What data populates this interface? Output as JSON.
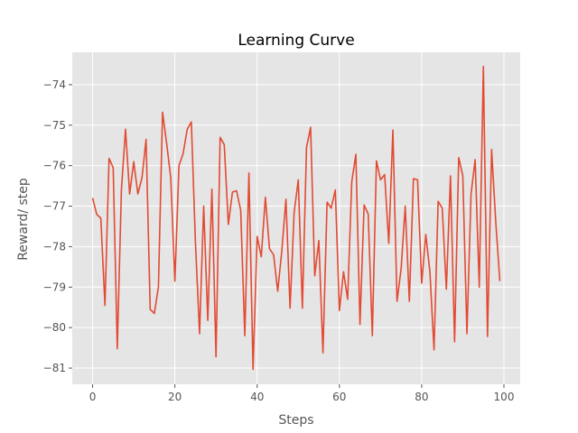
{
  "chart_data": {
    "type": "line",
    "title": "Learning Curve",
    "xlabel": "Steps",
    "ylabel": "Reward/ step",
    "xlim": [
      -4.95,
      103.95
    ],
    "ylim": [
      -81.4,
      -73.2
    ],
    "xticks": [
      0,
      20,
      40,
      60,
      80,
      100
    ],
    "yticks": [
      -81,
      -80,
      -79,
      -78,
      -77,
      -76,
      -75,
      -74
    ],
    "grid": true,
    "line_color": "#E24A33",
    "background_color": "#E5E5E5",
    "series": [
      {
        "x": [
          0,
          1,
          2,
          3,
          4,
          5,
          6,
          7,
          8,
          9,
          10,
          11,
          12,
          13,
          14,
          15,
          16,
          17,
          18,
          19,
          20,
          21,
          22,
          23,
          24,
          25,
          26,
          27,
          28,
          29,
          30,
          31,
          32,
          33,
          34,
          35,
          36,
          37,
          38,
          39,
          40,
          41,
          42,
          43,
          44,
          45,
          46,
          47,
          48,
          49,
          50,
          51,
          52,
          53,
          54,
          55,
          56,
          57,
          58,
          59,
          60,
          61,
          62,
          63,
          64,
          65,
          66,
          67,
          68,
          69,
          70,
          71,
          72,
          73,
          74,
          75,
          76,
          77,
          78,
          79,
          80,
          81,
          82,
          83,
          84,
          85,
          86,
          87,
          88,
          89,
          90,
          91,
          92,
          93,
          94,
          95,
          96,
          97,
          98,
          99
        ],
        "values": [
          -76.8,
          -77.2,
          -77.3,
          -79.45,
          -75.82,
          -76.05,
          -80.52,
          -76.6,
          -75.1,
          -76.7,
          -75.9,
          -76.7,
          -76.3,
          -75.35,
          -79.55,
          -79.65,
          -79.0,
          -74.68,
          -75.45,
          -76.3,
          -78.85,
          -76.0,
          -75.7,
          -75.1,
          -74.92,
          -77.9,
          -80.15,
          -77.0,
          -79.82,
          -76.58,
          -80.72,
          -75.3,
          -75.48,
          -77.45,
          -76.65,
          -76.62,
          -77.1,
          -80.2,
          -76.18,
          -81.03,
          -77.75,
          -78.25,
          -76.78,
          -78.05,
          -78.2,
          -79.1,
          -78.1,
          -76.83,
          -79.52,
          -77.15,
          -76.35,
          -79.52,
          -75.55,
          -75.05,
          -78.72,
          -77.85,
          -80.62,
          -76.9,
          -77.05,
          -76.6,
          -79.58,
          -78.62,
          -79.3,
          -76.4,
          -75.72,
          -79.92,
          -76.97,
          -77.2,
          -80.2,
          -75.88,
          -76.35,
          -76.22,
          -77.92,
          -75.12,
          -79.35,
          -78.55,
          -77.0,
          -79.35,
          -76.32,
          -76.35,
          -78.9,
          -77.7,
          -78.62,
          -80.55,
          -76.88,
          -77.05,
          -79.05,
          -76.25,
          -80.35,
          -75.8,
          -76.25,
          -80.15,
          -76.7,
          -75.85,
          -79.0,
          -73.55,
          -80.22,
          -75.6,
          -77.38,
          -78.85
        ]
      }
    ]
  }
}
